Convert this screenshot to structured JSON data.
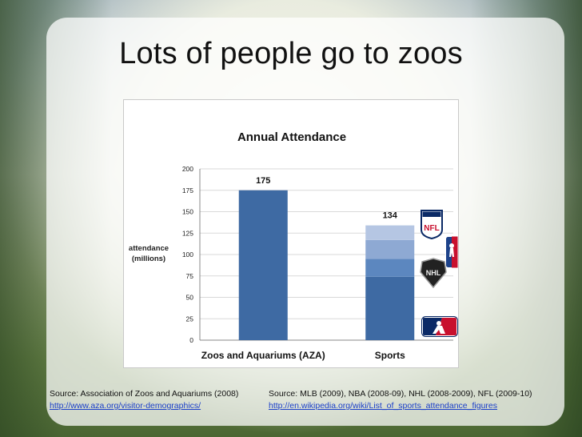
{
  "slide": {
    "title": "Lots of people go to zoos"
  },
  "chart_data": {
    "type": "bar",
    "title": "Annual Attendance",
    "ylabel": "attendance (millions)",
    "ylabel_lines": [
      "attendance",
      "(millions)"
    ],
    "xlabel": "",
    "ylim": [
      0,
      200
    ],
    "yticks": [
      0,
      25,
      50,
      75,
      100,
      125,
      150,
      175,
      200
    ],
    "categories": [
      "Zoos and Aquariums (AZA)",
      "Sports"
    ],
    "grid": true,
    "legend": "none",
    "totals_labels": [
      "175",
      "134"
    ],
    "bars": [
      {
        "category": "Zoos and Aquariums (AZA)",
        "total": 175,
        "segments": [
          {
            "value": 175,
            "color": "#3e6aa3"
          }
        ]
      },
      {
        "category": "Sports",
        "total": 134,
        "segments": [
          {
            "value": 74,
            "color": "#3e6aa3"
          },
          {
            "value": 21,
            "color": "#5c87bf"
          },
          {
            "value": 22,
            "color": "#8ea9d3"
          },
          {
            "value": 17,
            "color": "#b5c6e3"
          }
        ]
      }
    ],
    "colors": {
      "grid": "#d9d9d9",
      "axis": "#888888"
    }
  },
  "logos": [
    {
      "name": "nfl-logo-icon",
      "alt": "NFL"
    },
    {
      "name": "nba-logo-icon",
      "alt": "NBA"
    },
    {
      "name": "nhl-logo-icon",
      "alt": "NHL"
    },
    {
      "name": "mlb-logo-icon",
      "alt": "MLB"
    }
  ],
  "sources": {
    "left_text": "Source: Association of Zoos and Aquariums (2008)",
    "left_link": "http://www.aza.org/visitor-demographics/",
    "right_text": "Source: MLB (2009), NBA (2008-09), NHL (2008-2009), NFL (2009-10)",
    "right_link": "http://en.wikipedia.org/wiki/List_of_sports_attendance_figures"
  }
}
